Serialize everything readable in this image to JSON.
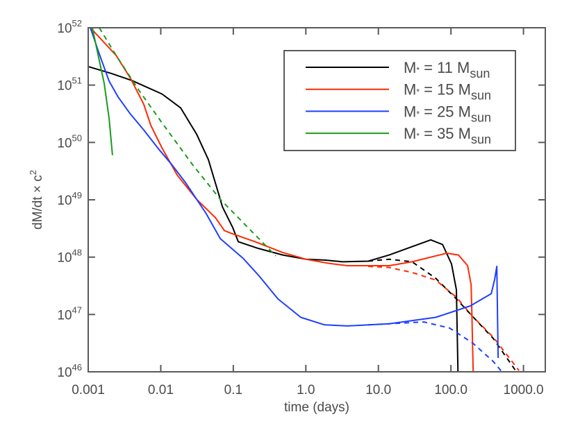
{
  "chart_data": {
    "type": "line",
    "xlabel": "time (days)",
    "ylabel": "dM/dt × c",
    "ylabel_sup": "2",
    "xscale": "log",
    "yscale": "log",
    "xlim": [
      0.001,
      2000
    ],
    "ylim": [
      1e+46,
      1e+52
    ],
    "grid": false,
    "legend_position": "top-right",
    "x_ticks": [
      {
        "value": 0.001,
        "label": "0.001"
      },
      {
        "value": 0.01,
        "label": "0.01"
      },
      {
        "value": 0.1,
        "label": "0.1"
      },
      {
        "value": 1,
        "label": "1.0"
      },
      {
        "value": 10,
        "label": "10.0"
      },
      {
        "value": 100,
        "label": "100.0"
      },
      {
        "value": 1000,
        "label": "1000.0"
      }
    ],
    "y_ticks": [
      {
        "value": 1e+46,
        "base": "10",
        "exp": "46"
      },
      {
        "value": 1e+47,
        "base": "10",
        "exp": "47"
      },
      {
        "value": 1e+48,
        "base": "10",
        "exp": "48"
      },
      {
        "value": 1e+49,
        "base": "10",
        "exp": "49"
      },
      {
        "value": 1e+50,
        "base": "10",
        "exp": "50"
      },
      {
        "value": 1e+51,
        "base": "10",
        "exp": "51"
      },
      {
        "value": 1e+52,
        "base": "10",
        "exp": "52"
      }
    ],
    "series": [
      {
        "name": "M* = 11 Msun",
        "legend": {
          "lhs": "M",
          "lhs_sub": "*",
          "rhs": " = 11 M",
          "rhs_sub": "sun"
        },
        "color": "#000000",
        "style": "solid",
        "points": [
          [
            0.001,
            2.1e+51
          ],
          [
            0.00207,
            1.6e+51
          ],
          [
            0.004,
            1.2e+51
          ],
          [
            0.0104,
            7e+50
          ],
          [
            0.0188,
            4e+50
          ],
          [
            0.0262,
            2e+50
          ],
          [
            0.0312,
            1.4e+50
          ],
          [
            0.0454,
            5e+49
          ],
          [
            0.0632,
            1.24e+49
          ],
          [
            0.0706,
            7.6e+48
          ],
          [
            0.098,
            3.3e+48
          ],
          [
            0.117,
            1.86e+48
          ],
          [
            0.213,
            1.44e+48
          ],
          [
            0.481,
            1.09e+48
          ],
          [
            1.0,
            9.2e+47
          ],
          [
            1.81,
            8.9e+47
          ],
          [
            3.21,
            8.3e+47
          ],
          [
            7.25,
            8.5e+47
          ],
          [
            14.1,
            1.09e+48
          ],
          [
            29.1,
            1.52e+48
          ],
          [
            52.7,
            2e+48
          ],
          [
            76.7,
            1.66e+48
          ],
          [
            102,
            7.6e+47
          ],
          [
            119,
            2.7e+47
          ],
          [
            125,
            9.8e+45
          ]
        ]
      },
      {
        "color": "#000000",
        "style": "dashed",
        "points": [
          [
            7.25,
            8.5e+47
          ],
          [
            14.1,
            9.2e+47
          ],
          [
            29.1,
            8.3e+47
          ],
          [
            61.5,
            4.3e+47
          ],
          [
            119,
            1.87e+47
          ],
          [
            198,
            9.3e+46
          ],
          [
            384,
            3.8e+46
          ],
          [
            778,
            1.05e+46
          ]
        ]
      },
      {
        "name": "M* = 15 Msun",
        "legend": {
          "lhs": "M",
          "lhs_sub": "*",
          "rhs": " = 15 M",
          "rhs_sub": "sun"
        },
        "color": "#ff2a00",
        "style": "solid",
        "points": [
          [
            0.00107,
            1e+52
          ],
          [
            0.00242,
            3.3e+51
          ],
          [
            0.00384,
            1.3e+51
          ],
          [
            0.00583,
            4.6e+50
          ],
          [
            0.00728,
            2e+50
          ],
          [
            0.0104,
            8e+49
          ],
          [
            0.0168,
            2.7e+49
          ],
          [
            0.0312,
            1.02e+49
          ],
          [
            0.0566,
            4.9e+48
          ],
          [
            0.0754,
            2.9e+48
          ],
          [
            0.094,
            2.6e+48
          ],
          [
            0.199,
            1.86e+48
          ],
          [
            0.481,
            1.2e+48
          ],
          [
            1.0,
            9.2e+47
          ],
          [
            2.06,
            7.8e+47
          ],
          [
            3.74,
            7.1e+47
          ],
          [
            14.1,
            7.1e+47
          ],
          [
            29.1,
            8.3e+47
          ],
          [
            87.6,
            1.17e+48
          ],
          [
            127,
            1.09e+48
          ],
          [
            170,
            7.1e+47
          ],
          [
            190,
            3.3e+47
          ],
          [
            194,
            1.17e+47
          ],
          [
            203,
            9.8e+45
          ]
        ]
      },
      {
        "color": "#ff2a00",
        "style": "dashed",
        "points": [
          [
            7.25,
            6.9e+47
          ],
          [
            14.1,
            6.6e+47
          ],
          [
            29.1,
            5.4e+47
          ],
          [
            61.5,
            4e+47
          ],
          [
            119,
            2e+47
          ],
          [
            198,
            9.3e+46
          ],
          [
            384,
            4e+46
          ],
          [
            869,
            1.05e+46
          ]
        ]
      },
      {
        "name": "M* = 25 Msun",
        "legend": {
          "lhs": "M",
          "lhs_sub": "*",
          "rhs": " = 25 M",
          "rhs_sub": "sun"
        },
        "color": "#1f3fff",
        "style": "solid",
        "points": [
          [
            0.00107,
            1e+52
          ],
          [
            0.00142,
            3.5e+51
          ],
          [
            0.00194,
            1.17e+51
          ],
          [
            0.00258,
            6.2e+50
          ],
          [
            0.00376,
            3.2e+50
          ],
          [
            0.00583,
            1.65e+50
          ],
          [
            0.00908,
            8e+49
          ],
          [
            0.0144,
            4e+49
          ],
          [
            0.0219,
            2e+49
          ],
          [
            0.0425,
            5.7e+48
          ],
          [
            0.0661,
            2.1e+48
          ],
          [
            0.137,
            9.5e+47
          ],
          [
            0.227,
            4.7e+47
          ],
          [
            0.412,
            1.87e+47
          ],
          [
            0.853,
            8.9e+46
          ],
          [
            1.81,
            6.6e+46
          ],
          [
            3.74,
            6.3e+46
          ],
          [
            14.1,
            6.9e+46
          ],
          [
            61.5,
            8.9e+46
          ],
          [
            185,
            1.41e+47
          ],
          [
            360,
            2.3e+47
          ],
          [
            401,
            4.1e+47
          ],
          [
            429,
            6.9e+47
          ],
          [
            448,
            1.74e+46
          ]
        ]
      },
      {
        "color": "#1f3fff",
        "style": "dashed",
        "points": [
          [
            7.25,
            6.6e+46
          ],
          [
            42.3,
            7.4e+46
          ],
          [
            95.7,
            5.8e+46
          ],
          [
            198,
            3.2e+46
          ],
          [
            384,
            1.51e+46
          ],
          [
            511,
            9.8e+45
          ]
        ]
      },
      {
        "name": "M* = 35 Msun",
        "legend": {
          "lhs": "M",
          "lhs_sub": "*",
          "rhs": " = 35 M",
          "rhs_sub": "sun"
        },
        "color": "#1a9a1a",
        "style": "solid",
        "points": [
          [
            0.00114,
            1e+52
          ],
          [
            0.00142,
            2.7e+51
          ],
          [
            0.00166,
            1.07e+51
          ],
          [
            0.00194,
            2.6e+50
          ],
          [
            0.00216,
            6e+49
          ]
        ]
      },
      {
        "color": "#1a9a1a",
        "style": "dashed",
        "points": [
          [
            0.00142,
            1e+52
          ],
          [
            0.00242,
            3.3e+51
          ],
          [
            0.005,
            8.1e+50
          ],
          [
            0.0104,
            2.2e+50
          ],
          [
            0.0274,
            4.1e+49
          ],
          [
            0.0661,
            1.02e+49
          ],
          [
            0.385,
            1.05e+48
          ]
        ]
      }
    ]
  }
}
